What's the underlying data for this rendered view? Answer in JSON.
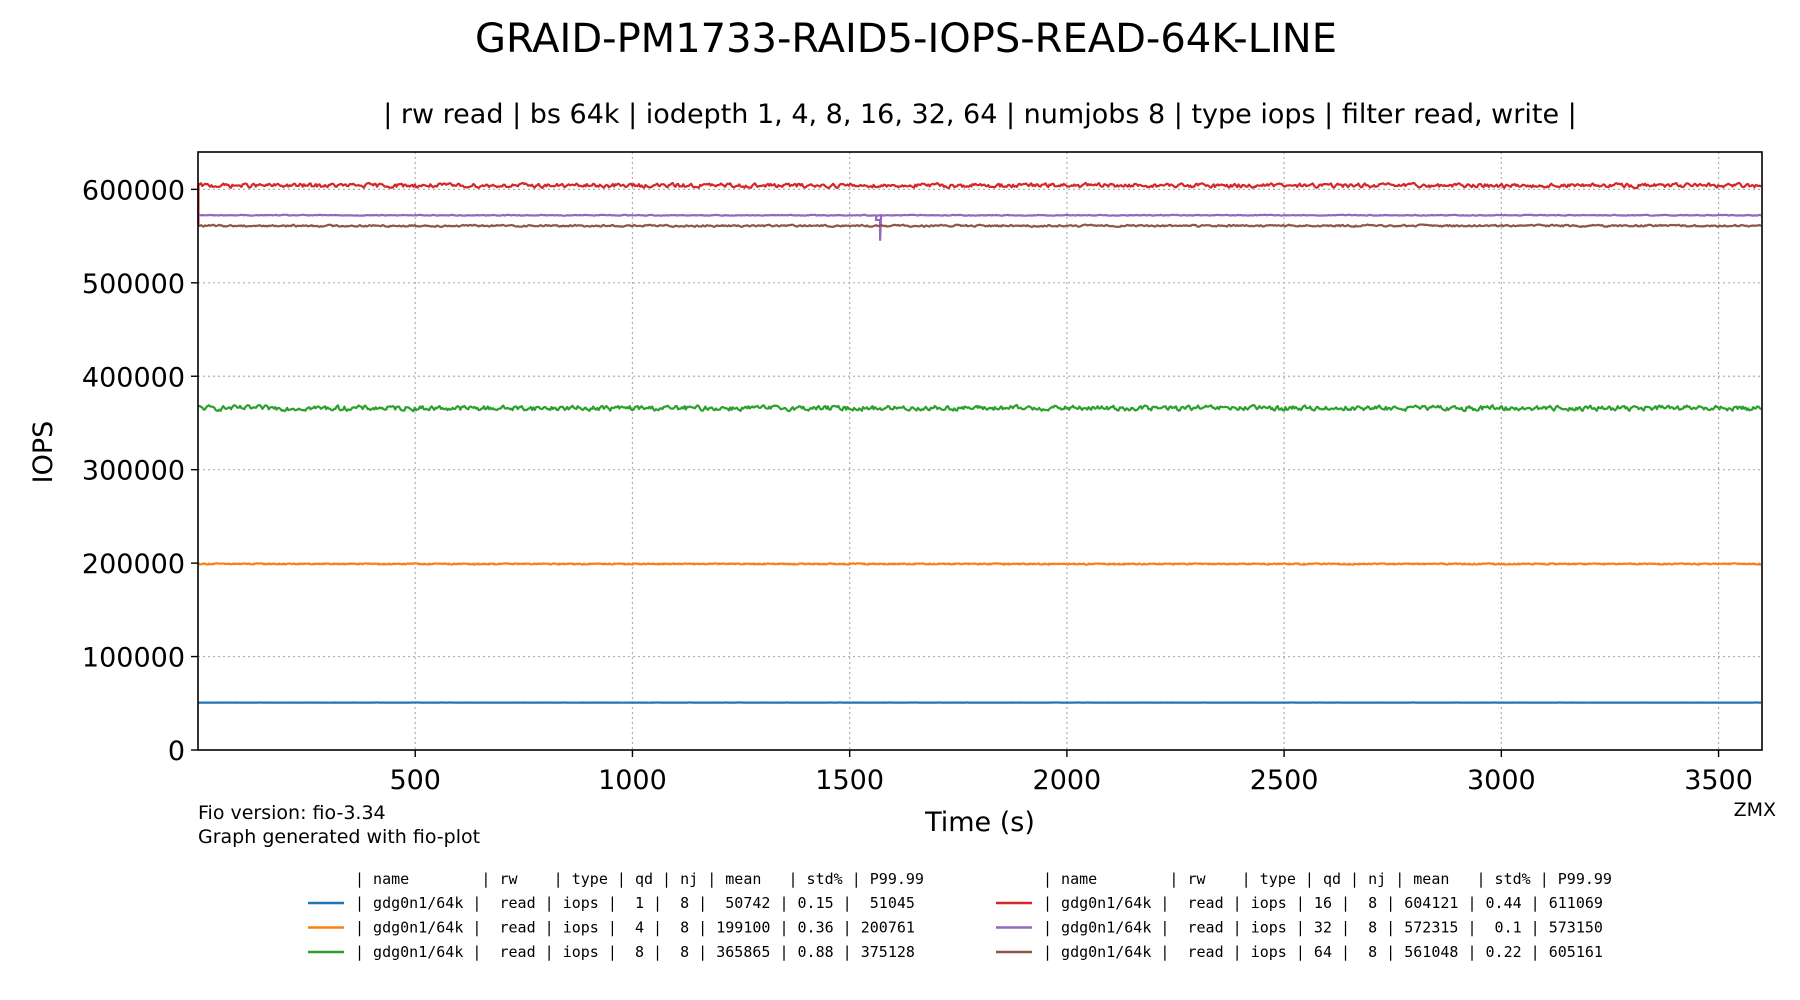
{
  "chart_data": {
    "type": "line",
    "title": "GRAID-PM1733-RAID5-IOPS-READ-64K-LINE",
    "subtitle": "| rw read | bs 64k | iodepth 1, 4, 8, 16, 32, 64 | numjobs 8 | type iops | filter read, write |",
    "xlabel": "Time (s)",
    "ylabel": "IOPS",
    "xlim": [
      0,
      3600
    ],
    "ylim": [
      0,
      640000
    ],
    "xticks": [
      500,
      1000,
      1500,
      2000,
      2500,
      3000,
      3500
    ],
    "yticks": [
      0,
      100000,
      200000,
      300000,
      400000,
      500000,
      600000
    ],
    "grid": true,
    "footnote_left": [
      "Fio version: fio-3.34",
      "Graph generated with fio-plot"
    ],
    "footnote_right": "ZMX",
    "legend": {
      "placement": "bottom",
      "header": "| name        | rw    | type | qd | nj | mean   | std% | P99.99"
    },
    "series": [
      {
        "label": "| gdg0n1/64k |  read | iops |  1 |  8 |  50742 | 0.15 |  51045",
        "color": "#1f77b4",
        "qd": 1,
        "mean": 50742,
        "std_pct": 0.15,
        "p9999": 51045
      },
      {
        "label": "| gdg0n1/64k |  read | iops |  4 |  8 | 199100 | 0.36 | 200761",
        "color": "#ff7f0e",
        "qd": 4,
        "mean": 199100,
        "std_pct": 0.36,
        "p9999": 200761
      },
      {
        "label": "| gdg0n1/64k |  read | iops |  8 |  8 | 365865 | 0.88 | 375128",
        "color": "#2ca02c",
        "qd": 8,
        "mean": 365865,
        "std_pct": 0.88,
        "p9999": 375128
      },
      {
        "label": "| gdg0n1/64k |  read | iops | 16 |  8 | 604121 | 0.44 | 611069",
        "color": "#d62728",
        "qd": 16,
        "mean": 604121,
        "std_pct": 0.44,
        "p9999": 611069
      },
      {
        "label": "| gdg0n1/64k |  read | iops | 32 |  8 | 572315 |  0.1 | 573150",
        "color": "#9467bd",
        "qd": 32,
        "mean": 572315,
        "std_pct": 0.1,
        "p9999": 573150,
        "dip": {
          "x": 1570,
          "y": 545000
        }
      },
      {
        "label": "| gdg0n1/64k |  read | iops | 64 |  8 | 561048 | 0.22 | 605161",
        "color": "#8c564b",
        "qd": 64,
        "mean": 561048,
        "std_pct": 0.22,
        "p9999": 605161
      }
    ]
  }
}
